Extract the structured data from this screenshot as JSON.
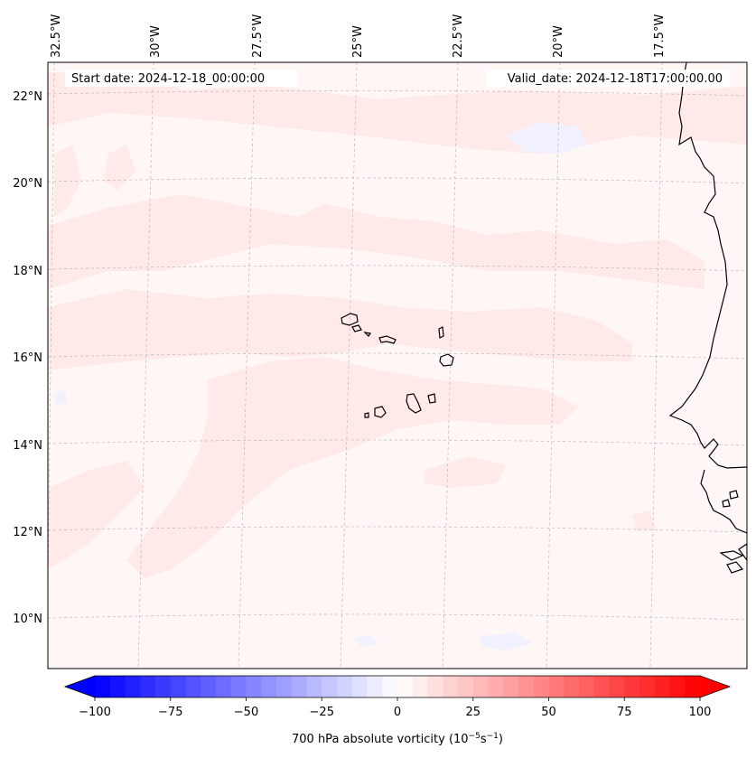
{
  "map": {
    "start_date": "Start date: 2024-12-18_00:00:00",
    "valid_date": "Valid_date: 2024-12-18T17:00:00.00",
    "lon_ticks": [
      "32.5°W",
      "30°W",
      "27.5°W",
      "25°W",
      "22.5°W",
      "20°W",
      "17.5°W"
    ],
    "lat_ticks": [
      "22°N",
      "20°N",
      "18°N",
      "16°N",
      "14°N",
      "12°N",
      "10°N"
    ],
    "gridlines": "dashed",
    "coastline_color": "#000000"
  },
  "field": {
    "variable": "700 hPa absolute vorticity",
    "colormap": "bwr",
    "background_level_color": "#fff6f6",
    "positive_band_color": "#ffe9e9",
    "negative_band_color": "#f1f1ff"
  },
  "colorbar": {
    "label": "700 hPa absolute vorticity (10",
    "label_exp1": "−5",
    "label_mid": "s",
    "label_exp2": "−1",
    "label_end": ")",
    "ticks": [
      "−100",
      "−75",
      "−50",
      "−25",
      "0",
      "25",
      "50",
      "75",
      "100"
    ],
    "min": -100,
    "max": 100,
    "levels_step": 5,
    "min_color": "#0000ff",
    "max_color": "#ff0000",
    "extend": "both"
  }
}
